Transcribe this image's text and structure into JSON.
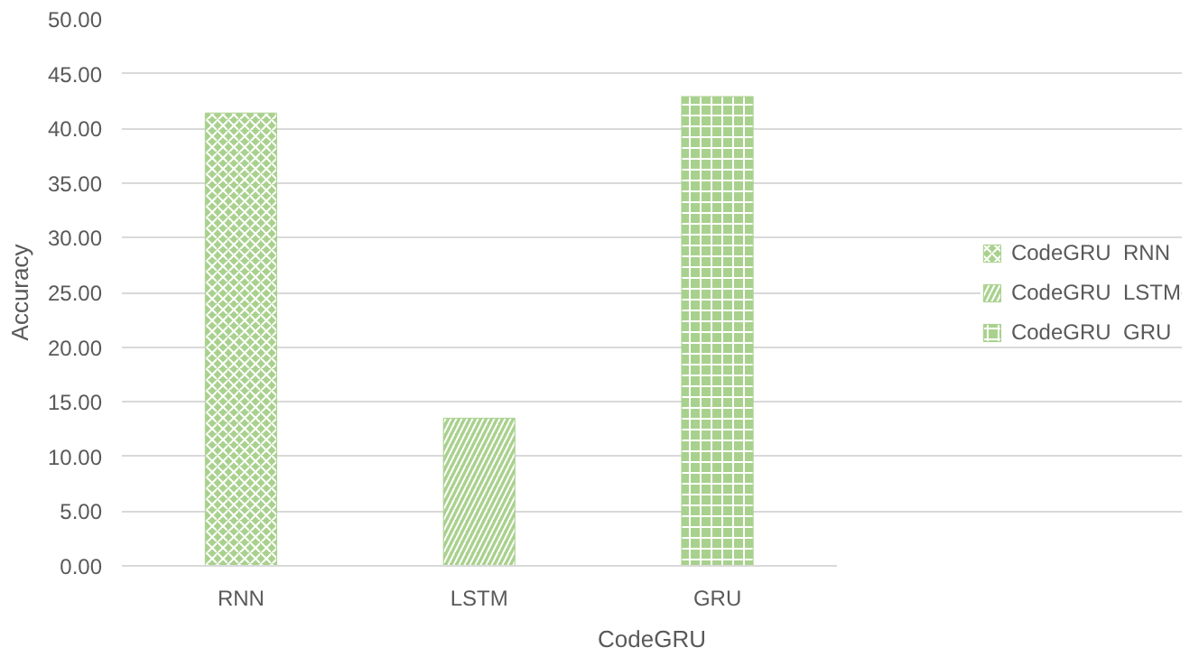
{
  "chart_data": {
    "type": "bar",
    "categories": [
      "RNN",
      "LSTM",
      "GRU"
    ],
    "xlabel": "CodeGRU",
    "ylabel": "Accuracy",
    "series": [
      {
        "name": "CodeGRU  RNN",
        "color": "#a9d18e",
        "values": [
          41.4,
          null,
          null
        ]
      },
      {
        "name": "CodeGRU  LSTM",
        "color": "#a9d18e",
        "values": [
          null,
          13.5,
          null
        ]
      },
      {
        "name": "CodeGRU  GRU",
        "color": "#a9d18e",
        "values": [
          null,
          null,
          42.9
        ]
      }
    ],
    "ylim": [
      0,
      50
    ],
    "yticks": [
      {
        "value": 0,
        "label": "0.00"
      },
      {
        "value": 5,
        "label": "5.00"
      },
      {
        "value": 10,
        "label": "10.00"
      },
      {
        "value": 15,
        "label": "15.00"
      },
      {
        "value": 20,
        "label": "20.00"
      },
      {
        "value": 25,
        "label": "25.00"
      },
      {
        "value": 30,
        "label": "30.00"
      },
      {
        "value": 35,
        "label": "35.00"
      },
      {
        "value": 40,
        "label": "40.00"
      },
      {
        "value": 45,
        "label": "45.00"
      },
      {
        "value": 50,
        "label": "50.00"
      }
    ],
    "grid": "y",
    "legend": "right"
  }
}
